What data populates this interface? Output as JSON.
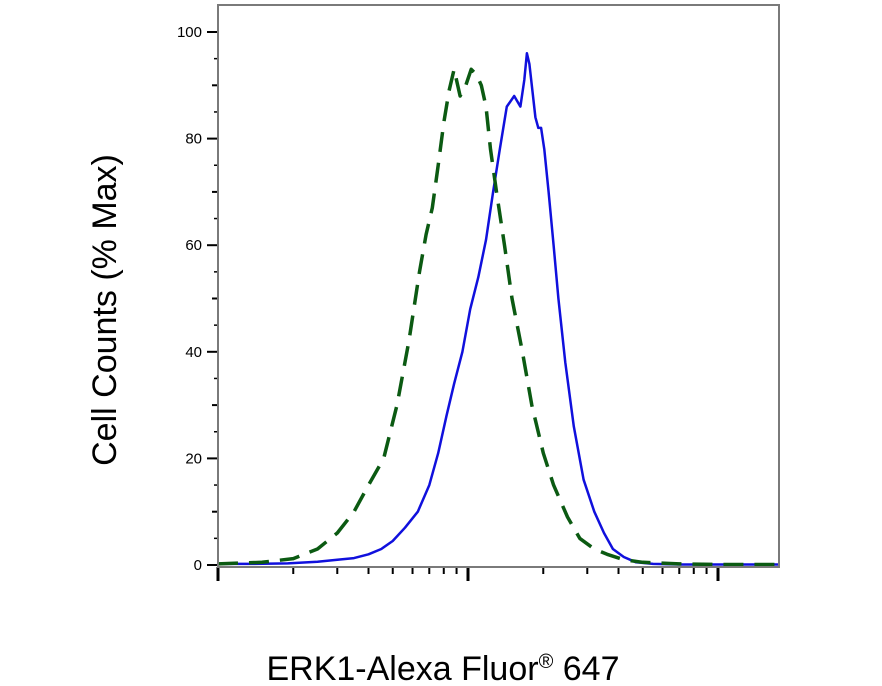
{
  "chart_data": {
    "type": "line",
    "title": "",
    "xlabel": "ERK1-Alexa Fluor",
    "xlabel_superscript": "®",
    "xlabel_suffix": " 647",
    "ylabel": "Cell Counts (% Max)",
    "xscale": "log",
    "xlim": [
      1,
      10000
    ],
    "ylim": [
      0,
      105
    ],
    "y_ticks": [
      0,
      20,
      40,
      60,
      80,
      100
    ],
    "x_major_ticks": [
      1,
      10,
      100,
      1000
    ],
    "grid": false,
    "legend": "none",
    "series": [
      {
        "color": "#1010dd",
        "style": "solid",
        "x": [
          1.0,
          1.4,
          1.9,
          2.5,
          3.0,
          3.5,
          4.0,
          4.5,
          5.0,
          5.6,
          6.3,
          7.0,
          7.6,
          8.2,
          8.8,
          9.5,
          10.2,
          11.0,
          11.8,
          12.6,
          13.4,
          14.3,
          15.3,
          16.2,
          16.8,
          17.2,
          17.6,
          18.1,
          18.6,
          19.1,
          19.6,
          20.2,
          21.0,
          22.0,
          23.0,
          24.5,
          26.5,
          29.0,
          32.0,
          35.0,
          38.0,
          42.0,
          47.0,
          55.0,
          70.0,
          100.0,
          200.0,
          10000.0
        ],
        "y": [
          0.2,
          0.2,
          0.3,
          0.6,
          1.0,
          1.3,
          2.0,
          3.0,
          4.5,
          7.0,
          10.0,
          15.0,
          21.0,
          28.0,
          34.0,
          40.0,
          48.0,
          54.0,
          61.0,
          70.0,
          78.0,
          86.0,
          88.0,
          86.0,
          91.0,
          96.0,
          94.0,
          89.0,
          84.0,
          82.0,
          82.0,
          78.0,
          70.0,
          60.0,
          50.0,
          38.0,
          26.0,
          16.0,
          10.0,
          6.0,
          3.0,
          1.5,
          0.5,
          0.2,
          0.1,
          0.1,
          0.1,
          0.1
        ]
      },
      {
        "color": "#0b5a12",
        "style": "dashed",
        "x": [
          1.0,
          1.5,
          2.0,
          2.5,
          3.0,
          3.5,
          4.0,
          4.6,
          5.2,
          5.8,
          6.4,
          6.8,
          7.2,
          7.6,
          8.0,
          8.4,
          8.8,
          9.3,
          9.8,
          10.3,
          10.8,
          11.3,
          11.8,
          12.3,
          13.0,
          14.0,
          15.0,
          16.5,
          18.0,
          20.0,
          22.0,
          25.0,
          28.0,
          32.0,
          36.0,
          42.0,
          50.0,
          70.0,
          100.0,
          10000.0
        ],
        "y": [
          0.2,
          0.5,
          1.2,
          3.0,
          6.0,
          10.0,
          15.0,
          20.0,
          30.0,
          42.0,
          55.0,
          62.0,
          67.0,
          75.0,
          83.0,
          89.0,
          93.0,
          88.0,
          90.0,
          93.0,
          92.0,
          90.0,
          86.0,
          78.0,
          70.0,
          60.0,
          50.0,
          40.0,
          30.0,
          21.0,
          15.0,
          9.0,
          5.0,
          3.0,
          2.0,
          1.0,
          0.5,
          0.2,
          0.1,
          0.1
        ]
      }
    ]
  }
}
